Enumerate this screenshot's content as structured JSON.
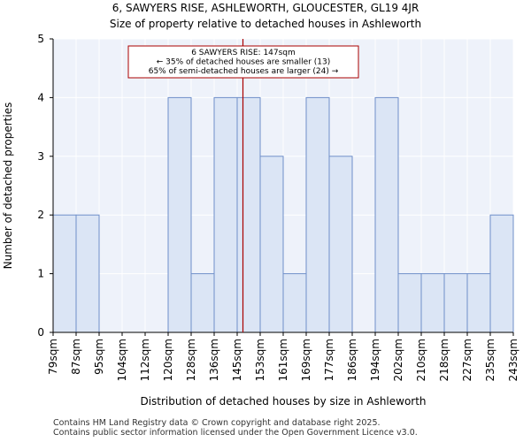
{
  "title_line1": "6, SAWYERS RISE, ASHLEWORTH, GLOUCESTER, GL19 4JR",
  "title_line2": "Size of property relative to detached houses in Ashleworth",
  "footer_line1": "Contains HM Land Registry data © Crown copyright and database right 2025.",
  "footer_line2": "Contains public sector information licensed under the Open Government Licence v3.0.",
  "chart_data": {
    "type": "bar",
    "xlabel": "Distribution of detached houses by size in Ashleworth",
    "ylabel": "Number of detached properties",
    "bin_edges": [
      "79sqm",
      "87sqm",
      "95sqm",
      "104sqm",
      "112sqm",
      "120sqm",
      "128sqm",
      "136sqm",
      "145sqm",
      "153sqm",
      "161sqm",
      "169sqm",
      "177sqm",
      "186sqm",
      "194sqm",
      "202sqm",
      "210sqm",
      "218sqm",
      "227sqm",
      "235sqm",
      "243sqm"
    ],
    "values": [
      2,
      2,
      0,
      0,
      0,
      4,
      1,
      4,
      4,
      3,
      1,
      4,
      3,
      0,
      4,
      1,
      1,
      1,
      1,
      2
    ],
    "ylim": [
      0,
      5
    ],
    "yticks": [
      0,
      1,
      2,
      3,
      4,
      5
    ],
    "grid": true,
    "bar_color": "#dbe5f5",
    "bar_edge_color": "#6f8fc9",
    "marker": {
      "value_sqm": 147,
      "color": "#aa0000",
      "annotation": [
        "6 SAWYERS RISE: 147sqm",
        "← 35% of detached houses are smaller (13)",
        "65% of semi-detached houses are larger (24) →"
      ]
    }
  }
}
